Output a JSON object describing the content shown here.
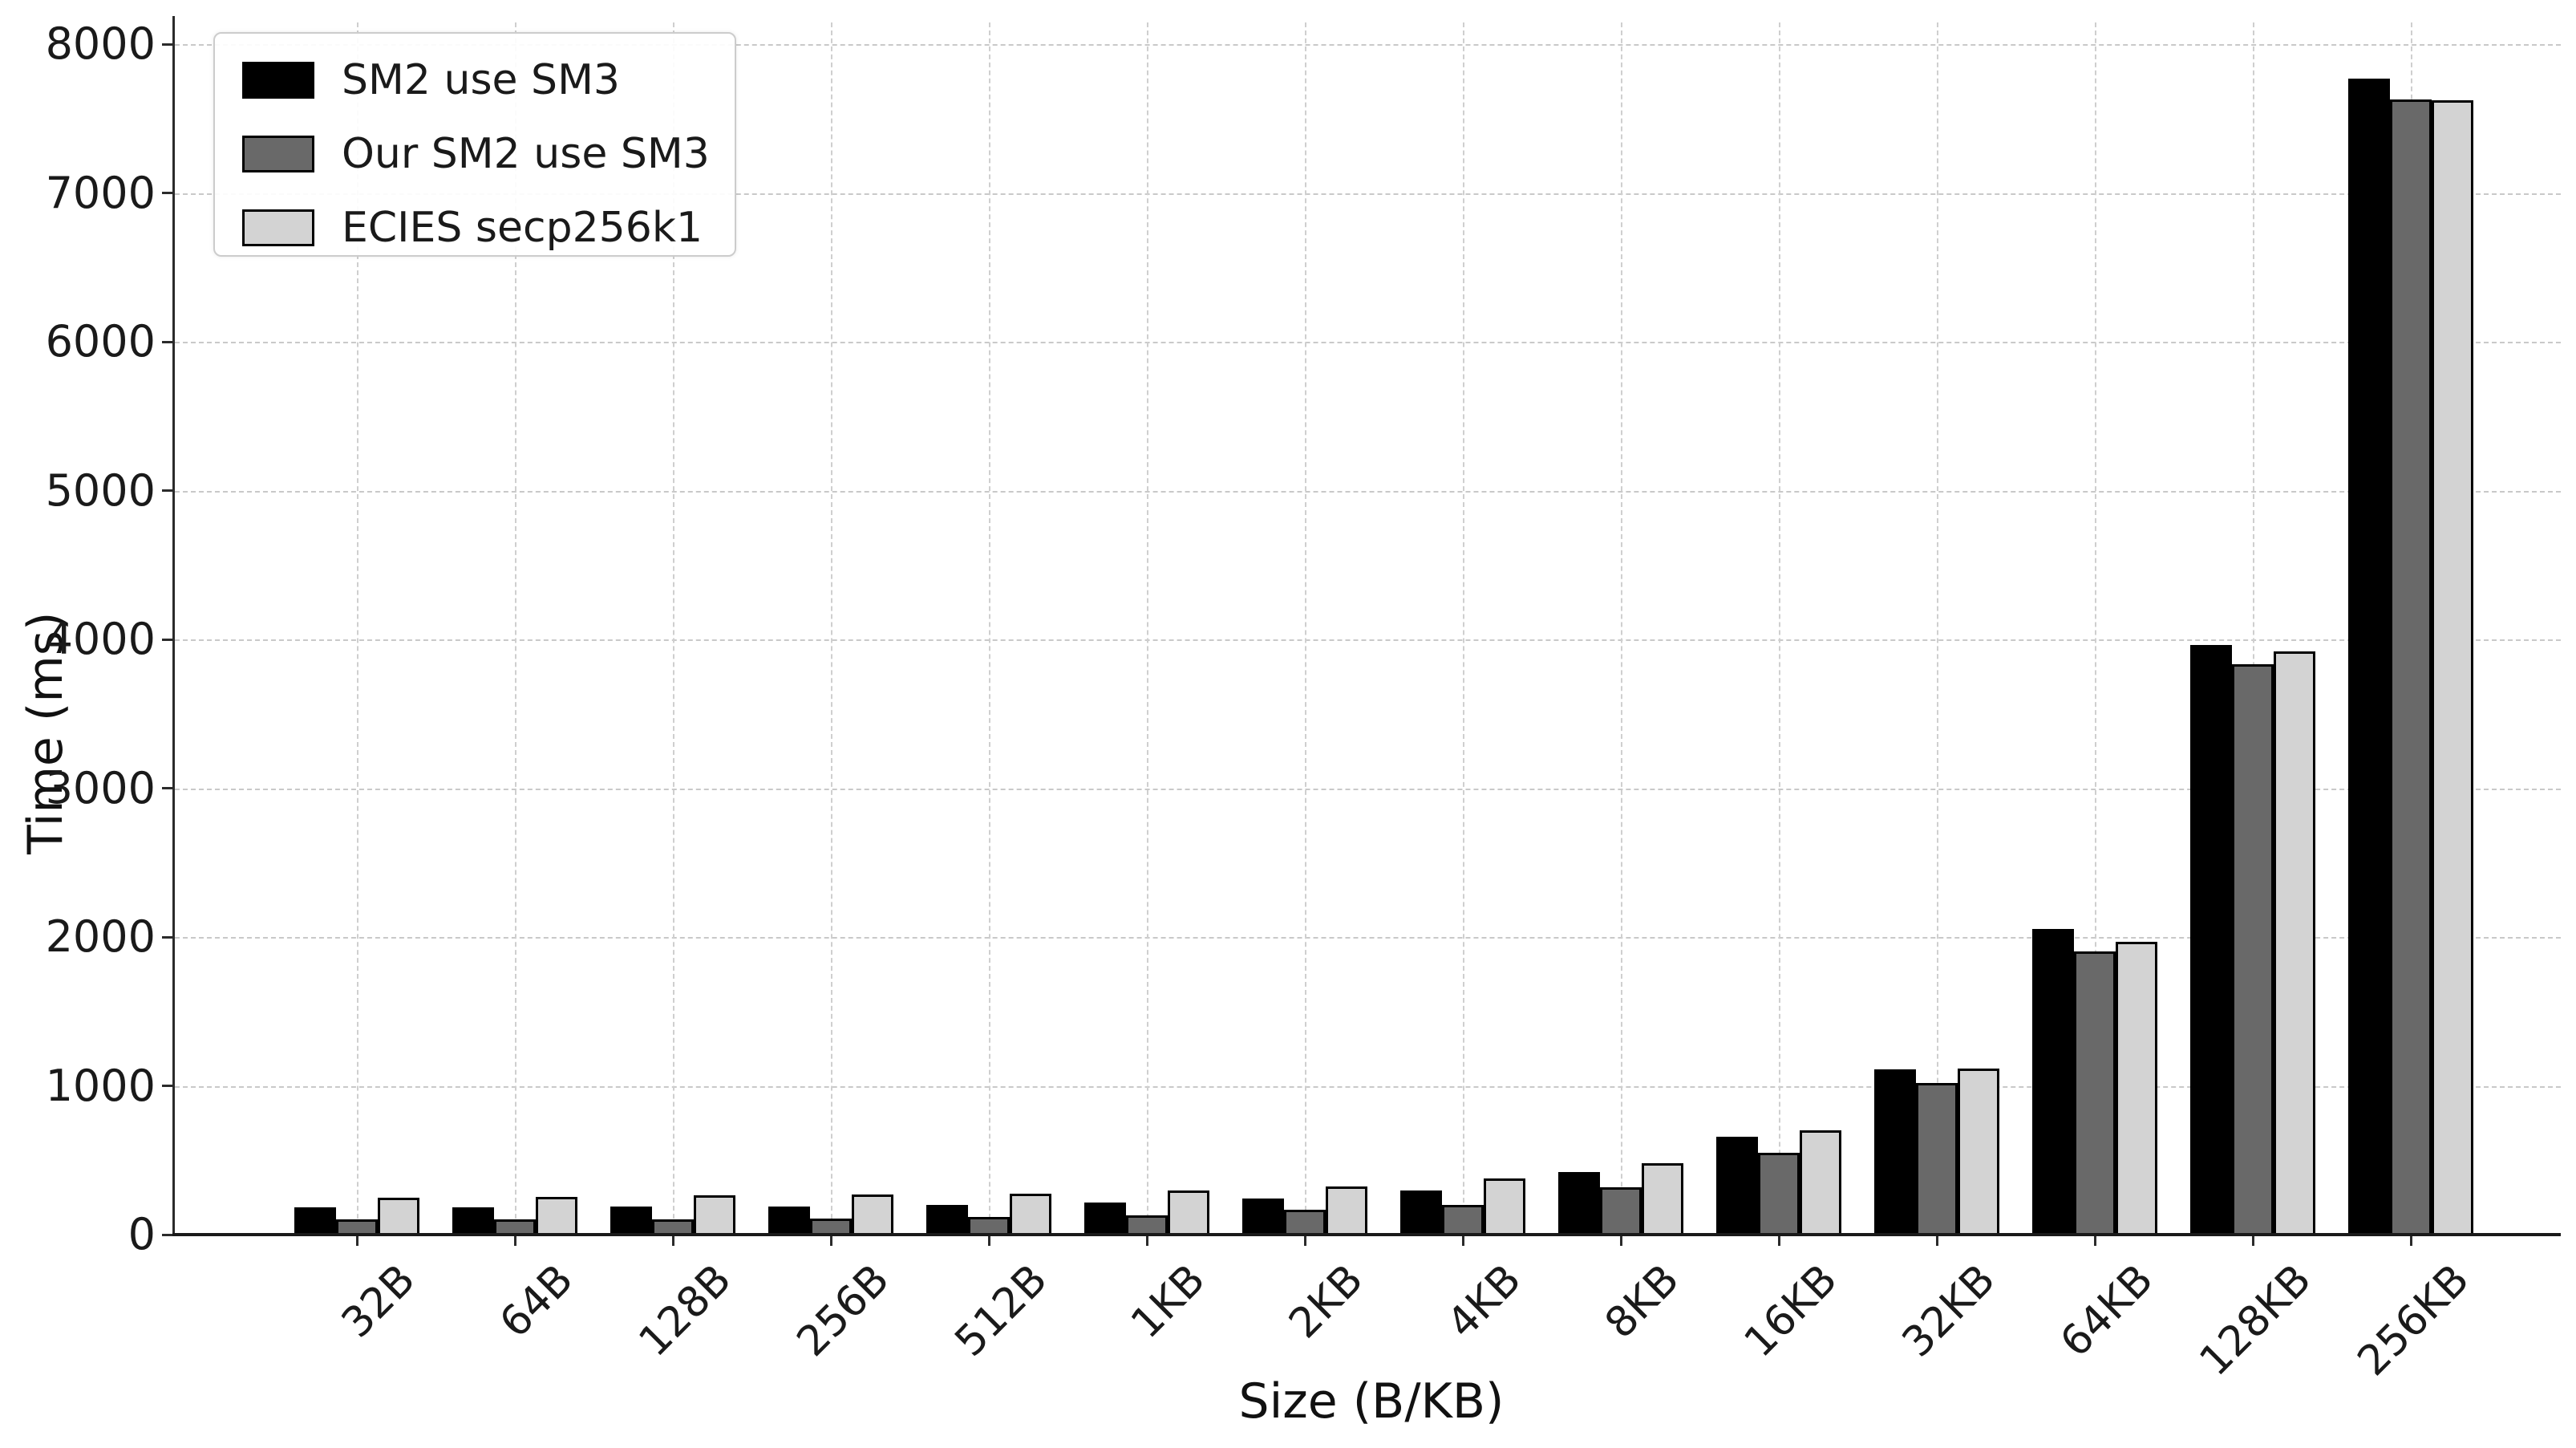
{
  "chart_data": {
    "type": "bar",
    "title": "",
    "xlabel": "Size (B/KB)",
    "ylabel": "Time (ms)",
    "categories": [
      "32B",
      "64B",
      "128B",
      "256B",
      "512B",
      "1KB",
      "2KB",
      "4KB",
      "8KB",
      "16KB",
      "32KB",
      "64KB",
      "128KB",
      "256KB"
    ],
    "series": [
      {
        "name": "SM2 use SM3",
        "color": "#000000",
        "values": [
          185,
          185,
          186,
          190,
          198,
          214,
          240,
          297,
          420,
          655,
          1110,
          2055,
          3960,
          7770
        ]
      },
      {
        "name": "Our SM2 use SM3",
        "color": "#696969",
        "values": [
          100,
          102,
          104,
          110,
          117,
          128,
          165,
          200,
          318,
          550,
          1020,
          1905,
          3835,
          7630
        ]
      },
      {
        "name": "ECIES secp256k1",
        "color": "#d3d3d3",
        "values": [
          250,
          255,
          263,
          270,
          277,
          295,
          322,
          377,
          480,
          700,
          1115,
          1970,
          3920,
          7620
        ]
      }
    ],
    "yticks": [
      0,
      1000,
      2000,
      3000,
      4000,
      5000,
      6000,
      7000,
      8000
    ],
    "ylim": [
      0,
      8145
    ],
    "grid": true,
    "legend_position": "upper left",
    "colors": {
      "grid": "#c9c9c9",
      "text": "#1a1a1a",
      "background": "#ffffff",
      "edge": "#000000"
    }
  }
}
